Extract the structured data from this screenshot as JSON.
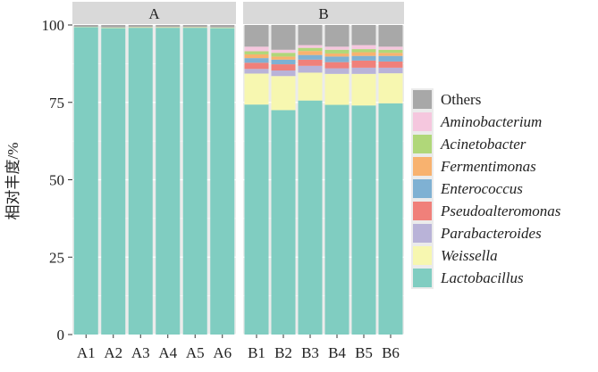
{
  "chart_data": {
    "type": "bar",
    "stacked": true,
    "ylabel": "相对丰度/%",
    "xlabel": "",
    "ylim": [
      0,
      100
    ],
    "yticks": [
      0,
      25,
      50,
      75,
      100
    ],
    "grid": true,
    "legend_position": "right",
    "colors": {
      "Lactobacillus": "#80cdc1",
      "Weissella": "#f7f7b0",
      "Parabacteroides": "#b9b3d8",
      "Pseudoalteromonas": "#f0807a",
      "Enterococcus": "#7fb1d3",
      "Fermentimonas": "#f8b26f",
      "Acinetobacter": "#b0d779",
      "Aminobacterium": "#f5c7de",
      "Others": "#a8a8a8"
    },
    "legend": [
      {
        "key": "Others",
        "label": "Others",
        "italic": false
      },
      {
        "key": "Aminobacterium",
        "label": "Aminobacterium",
        "italic": true
      },
      {
        "key": "Acinetobacter",
        "label": "Acinetobacter",
        "italic": true
      },
      {
        "key": "Fermentimonas",
        "label": "Fermentimonas",
        "italic": true
      },
      {
        "key": "Enterococcus",
        "label": "Enterococcus",
        "italic": true
      },
      {
        "key": "Pseudoalteromonas",
        "label": "Pseudoalteromonas",
        "italic": true
      },
      {
        "key": "Parabacteroides",
        "label": "Parabacteroides",
        "italic": true
      },
      {
        "key": "Weissella",
        "label": "Weissella",
        "italic": true
      },
      {
        "key": "Lactobacillus",
        "label": "Lactobacillus",
        "italic": true
      }
    ],
    "stack_order": [
      "Lactobacillus",
      "Weissella",
      "Parabacteroides",
      "Pseudoalteromonas",
      "Enterococcus",
      "Fermentimonas",
      "Acinetobacter",
      "Aminobacterium",
      "Others"
    ],
    "panels": [
      {
        "title": "A",
        "samples": [
          {
            "name": "A1",
            "values": {
              "Lactobacillus": 99.3,
              "Weissella": 0.1,
              "Parabacteroides": 0,
              "Pseudoalteromonas": 0,
              "Enterococcus": 0,
              "Fermentimonas": 0,
              "Acinetobacter": 0,
              "Aminobacterium": 0,
              "Others": 0.6
            }
          },
          {
            "name": "A2",
            "values": {
              "Lactobacillus": 99.0,
              "Weissella": 0.2,
              "Parabacteroides": 0,
              "Pseudoalteromonas": 0,
              "Enterococcus": 0,
              "Fermentimonas": 0,
              "Acinetobacter": 0,
              "Aminobacterium": 0,
              "Others": 0.8
            }
          },
          {
            "name": "A3",
            "values": {
              "Lactobacillus": 99.1,
              "Weissella": 0.2,
              "Parabacteroides": 0,
              "Pseudoalteromonas": 0,
              "Enterococcus": 0,
              "Fermentimonas": 0,
              "Acinetobacter": 0,
              "Aminobacterium": 0,
              "Others": 0.7
            }
          },
          {
            "name": "A4",
            "values": {
              "Lactobacillus": 99.1,
              "Weissella": 0.2,
              "Parabacteroides": 0,
              "Pseudoalteromonas": 0,
              "Enterococcus": 0,
              "Fermentimonas": 0,
              "Acinetobacter": 0,
              "Aminobacterium": 0,
              "Others": 0.7
            }
          },
          {
            "name": "A5",
            "values": {
              "Lactobacillus": 99.1,
              "Weissella": 0.2,
              "Parabacteroides": 0,
              "Pseudoalteromonas": 0,
              "Enterococcus": 0,
              "Fermentimonas": 0,
              "Acinetobacter": 0,
              "Aminobacterium": 0,
              "Others": 0.7
            }
          },
          {
            "name": "A6",
            "values": {
              "Lactobacillus": 99.0,
              "Weissella": 0.2,
              "Parabacteroides": 0,
              "Pseudoalteromonas": 0,
              "Enterococcus": 0,
              "Fermentimonas": 0,
              "Acinetobacter": 0,
              "Aminobacterium": 0,
              "Others": 0.8
            }
          }
        ]
      },
      {
        "title": "B",
        "samples": [
          {
            "name": "B1",
            "values": {
              "Lactobacillus": 74.3,
              "Weissella": 10.0,
              "Parabacteroides": 1.5,
              "Pseudoalteromonas": 2.0,
              "Enterococcus": 1.5,
              "Fermentimonas": 1.2,
              "Acinetobacter": 1.0,
              "Aminobacterium": 1.5,
              "Others": 7.0
            }
          },
          {
            "name": "B2",
            "values": {
              "Lactobacillus": 72.5,
              "Weissella": 11.0,
              "Parabacteroides": 1.8,
              "Pseudoalteromonas": 2.0,
              "Enterococcus": 1.5,
              "Fermentimonas": 1.0,
              "Acinetobacter": 1.2,
              "Aminobacterium": 1.0,
              "Others": 8.0
            }
          },
          {
            "name": "B3",
            "values": {
              "Lactobacillus": 75.6,
              "Weissella": 9.0,
              "Parabacteroides": 2.2,
              "Pseudoalteromonas": 2.0,
              "Enterococcus": 1.5,
              "Fermentimonas": 1.3,
              "Acinetobacter": 1.0,
              "Aminobacterium": 0.9,
              "Others": 6.5
            }
          },
          {
            "name": "B4",
            "values": {
              "Lactobacillus": 74.2,
              "Weissella": 10.0,
              "Parabacteroides": 1.8,
              "Pseudoalteromonas": 2.0,
              "Enterococcus": 1.8,
              "Fermentimonas": 1.0,
              "Acinetobacter": 1.2,
              "Aminobacterium": 1.0,
              "Others": 7.0
            }
          },
          {
            "name": "B5",
            "values": {
              "Lactobacillus": 74.0,
              "Weissella": 10.2,
              "Parabacteroides": 2.0,
              "Pseudoalteromonas": 2.3,
              "Enterococcus": 1.5,
              "Fermentimonas": 1.2,
              "Acinetobacter": 1.0,
              "Aminobacterium": 1.3,
              "Others": 6.5
            }
          },
          {
            "name": "B6",
            "values": {
              "Lactobacillus": 74.7,
              "Weissella": 9.7,
              "Parabacteroides": 1.8,
              "Pseudoalteromonas": 2.0,
              "Enterococcus": 1.8,
              "Fermentimonas": 1.0,
              "Acinetobacter": 1.0,
              "Aminobacterium": 1.0,
              "Others": 7.0
            }
          }
        ]
      }
    ]
  }
}
